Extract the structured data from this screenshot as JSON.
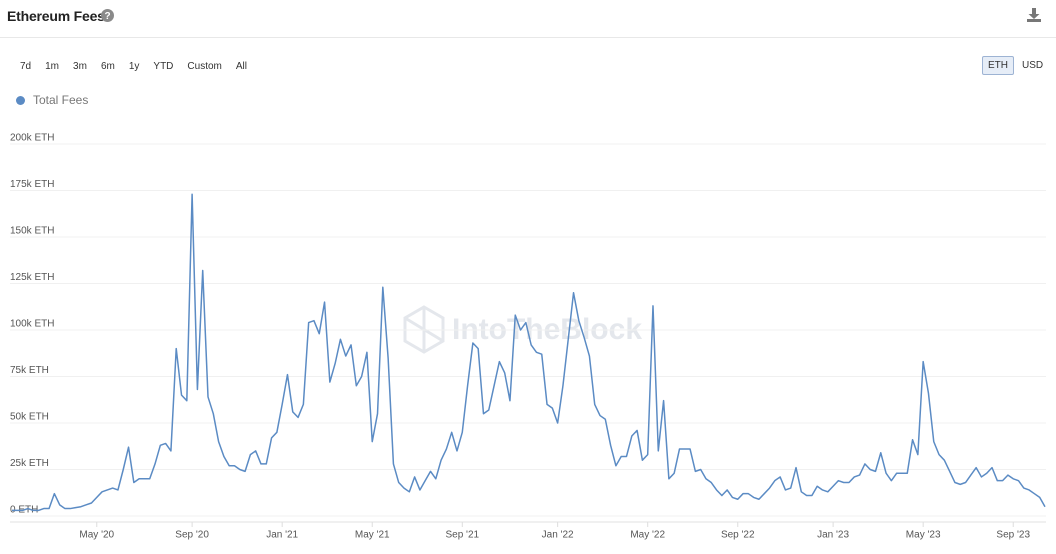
{
  "header": {
    "title": "Ethereum Fees"
  },
  "range_buttons": [
    "7d",
    "1m",
    "3m",
    "6m",
    "1y",
    "YTD",
    "Custom",
    "All"
  ],
  "unit_buttons": [
    "ETH",
    "USD"
  ],
  "chart_data": {
    "type": "line",
    "watermark": "IntoTheBlock",
    "categories": [
      null,
      null,
      null,
      null,
      null,
      null,
      null,
      null,
      null,
      null,
      null,
      null,
      null,
      null,
      null,
      null,
      "May '20",
      null,
      null,
      null,
      null,
      null,
      null,
      null,
      null,
      null,
      null,
      null,
      null,
      null,
      null,
      null,
      null,
      null,
      "Sep '20",
      null,
      null,
      null,
      null,
      null,
      null,
      null,
      null,
      null,
      null,
      null,
      null,
      null,
      null,
      null,
      null,
      "Jan '21",
      null,
      null,
      null,
      null,
      null,
      null,
      null,
      null,
      null,
      null,
      null,
      null,
      null,
      null,
      null,
      null,
      "May '21",
      null,
      null,
      null,
      null,
      null,
      null,
      null,
      null,
      null,
      null,
      null,
      null,
      null,
      null,
      null,
      null,
      "Sep '21",
      null,
      null,
      null,
      null,
      null,
      null,
      null,
      null,
      null,
      null,
      null,
      null,
      null,
      null,
      null,
      null,
      null,
      "Jan '22",
      null,
      null,
      null,
      null,
      null,
      null,
      null,
      null,
      null,
      null,
      null,
      null,
      null,
      null,
      null,
      null,
      "May '22",
      null,
      null,
      null,
      null,
      null,
      null,
      null,
      null,
      null,
      null,
      null,
      null,
      null,
      null,
      null,
      null,
      "Sep '22",
      null,
      null,
      null,
      null,
      null,
      null,
      null,
      null,
      null,
      null,
      null,
      null,
      null,
      null,
      null,
      null,
      null,
      "Jan '23",
      null,
      null,
      null,
      null,
      null,
      null,
      null,
      null,
      null,
      null,
      null,
      null,
      null,
      null,
      null,
      null,
      "May '23",
      null,
      null,
      null,
      null,
      null,
      null,
      null,
      null,
      null,
      null,
      null,
      null,
      null,
      null,
      null,
      null,
      "Sep '23",
      null,
      null,
      null,
      null,
      null,
      null
    ],
    "series": [
      {
        "name": "Total Fees",
        "color": "#5b8bc4",
        "values": [
          3000,
          3000,
          3000,
          4000,
          3000,
          3000,
          4000,
          4000,
          12000,
          6000,
          4000,
          4000,
          4500,
          5000,
          6000,
          7000,
          10000,
          13000,
          14000,
          15000,
          14000,
          25000,
          37000,
          18000,
          20000,
          20000,
          20000,
          28000,
          38000,
          39000,
          35000,
          90000,
          65000,
          62000,
          173000,
          68000,
          132000,
          64000,
          55000,
          40000,
          32000,
          27000,
          27000,
          25000,
          24000,
          33000,
          35000,
          28000,
          28000,
          42000,
          45000,
          60000,
          76000,
          56000,
          53000,
          60000,
          104000,
          105000,
          98000,
          115000,
          72000,
          82000,
          95000,
          86000,
          92000,
          70000,
          75000,
          88000,
          40000,
          55000,
          123000,
          85000,
          28000,
          18000,
          15000,
          13000,
          21000,
          14000,
          19000,
          24000,
          20000,
          30000,
          36000,
          45000,
          35000,
          45000,
          70000,
          93000,
          90000,
          55000,
          57000,
          70000,
          83000,
          77000,
          62000,
          108000,
          100000,
          104000,
          92000,
          88000,
          87000,
          60000,
          58000,
          50000,
          70000,
          95000,
          120000,
          105000,
          96000,
          86000,
          60000,
          54000,
          52000,
          38000,
          27000,
          32000,
          32000,
          43000,
          46000,
          30000,
          33000,
          113000,
          35000,
          62000,
          20000,
          23000,
          36000,
          36000,
          36000,
          24000,
          25000,
          20000,
          18000,
          14000,
          11000,
          14000,
          10000,
          9000,
          12000,
          12000,
          10000,
          9000,
          12000,
          15000,
          19000,
          21000,
          14000,
          15000,
          26000,
          13000,
          11000,
          11000,
          16000,
          14000,
          13000,
          16000,
          19000,
          18000,
          18000,
          21000,
          22000,
          28000,
          25000,
          24000,
          34000,
          23000,
          19000,
          23000,
          23000,
          23000,
          41000,
          33000,
          83000,
          66000,
          40000,
          33000,
          30000,
          24000,
          18000,
          17000,
          18000,
          22000,
          26000,
          21000,
          23000,
          26000,
          19000,
          19000,
          22000,
          20000,
          19000,
          15000,
          14000,
          12000,
          10000,
          5000
        ]
      }
    ],
    "ylim": [
      0,
      200000
    ],
    "yticks": [
      {
        "value": 0,
        "label": "0 ETH"
      },
      {
        "value": 25000,
        "label": "25k ETH"
      },
      {
        "value": 50000,
        "label": "50k ETH"
      },
      {
        "value": 75000,
        "label": "75k ETH"
      },
      {
        "value": 100000,
        "label": "100k ETH"
      },
      {
        "value": 125000,
        "label": "125k ETH"
      },
      {
        "value": 150000,
        "label": "150k ETH"
      },
      {
        "value": 175000,
        "label": "175k ETH"
      },
      {
        "value": 200000,
        "label": "200k ETH"
      }
    ],
    "grid": true
  }
}
